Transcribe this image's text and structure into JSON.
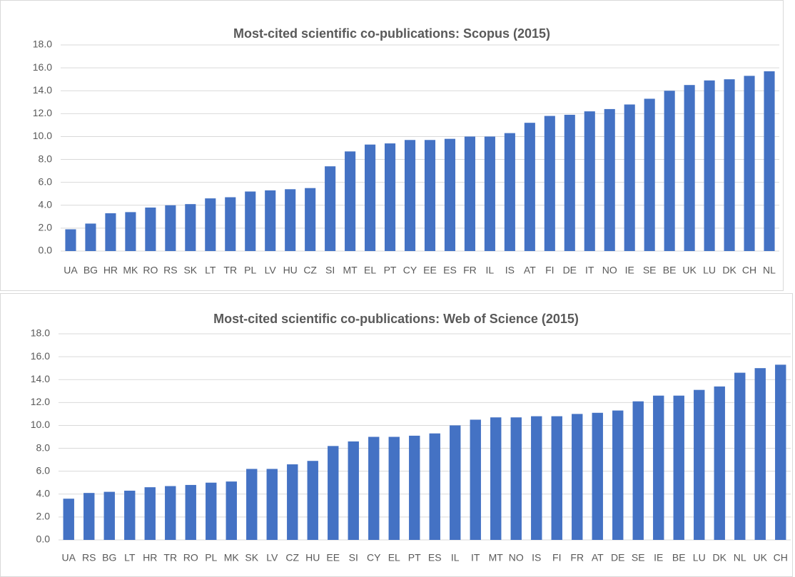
{
  "chart_data": [
    {
      "type": "bar",
      "title": "Most-cited scientific co-publications: Scopus (2015)",
      "categories": [
        "UA",
        "BG",
        "HR",
        "MK",
        "RO",
        "RS",
        "SK",
        "LT",
        "TR",
        "PL",
        "LV",
        "HU",
        "CZ",
        "SI",
        "MT",
        "EL",
        "PT",
        "CY",
        "EE",
        "ES",
        "FR",
        "IL",
        "IS",
        "AT",
        "FI",
        "DE",
        "IT",
        "NO",
        "IE",
        "SE",
        "BE",
        "UK",
        "LU",
        "DK",
        "CH",
        "NL"
      ],
      "values": [
        1.9,
        2.4,
        3.3,
        3.4,
        3.8,
        4.0,
        4.1,
        4.6,
        4.7,
        5.2,
        5.3,
        5.4,
        5.5,
        7.4,
        8.7,
        9.3,
        9.4,
        9.7,
        9.7,
        9.8,
        10.0,
        10.0,
        10.3,
        11.2,
        11.8,
        11.9,
        12.2,
        12.4,
        12.8,
        13.3,
        14.0,
        14.5,
        14.9,
        15.0,
        15.3,
        15.7
      ],
      "color": "#4472c4",
      "ylim": [
        0,
        18
      ],
      "yticks": [
        {
          "value": 0,
          "label": "0.0"
        },
        {
          "value": 2,
          "label": "2.0"
        },
        {
          "value": 4,
          "label": "4.0"
        },
        {
          "value": 6,
          "label": "6.0"
        },
        {
          "value": 8,
          "label": "8.0"
        },
        {
          "value": 10,
          "label": "10.0"
        },
        {
          "value": 12,
          "label": "12.0"
        },
        {
          "value": 14,
          "label": "14.0"
        },
        {
          "value": 16,
          "label": "16.0"
        },
        {
          "value": 18,
          "label": "18.0"
        }
      ],
      "grid": true
    },
    {
      "type": "bar",
      "title": "Most-cited scientific co-publications: Web of Science (2015)",
      "categories": [
        "UA",
        "RS",
        "BG",
        "LT",
        "HR",
        "TR",
        "RO",
        "PL",
        "MK",
        "SK",
        "LV",
        "CZ",
        "HU",
        "EE",
        "SI",
        "CY",
        "EL",
        "PT",
        "ES",
        "IL",
        "IT",
        "MT",
        "NO",
        "IS",
        "FI",
        "FR",
        "AT",
        "DE",
        "SE",
        "IE",
        "BE",
        "LU",
        "DK",
        "NL",
        "UK",
        "CH"
      ],
      "values": [
        3.6,
        4.1,
        4.2,
        4.3,
        4.6,
        4.7,
        4.8,
        5.0,
        5.1,
        6.2,
        6.2,
        6.6,
        6.9,
        8.2,
        8.6,
        9.0,
        9.0,
        9.1,
        9.3,
        10.0,
        10.5,
        10.7,
        10.7,
        10.8,
        10.8,
        11.0,
        11.1,
        11.3,
        12.1,
        12.6,
        12.6,
        13.1,
        13.4,
        14.6,
        15.0,
        15.3
      ],
      "color": "#4472c4",
      "ylim": [
        0,
        18
      ],
      "yticks": [
        {
          "value": 0,
          "label": "0.0"
        },
        {
          "value": 2,
          "label": "2.0"
        },
        {
          "value": 4,
          "label": "4.0"
        },
        {
          "value": 6,
          "label": "6.0"
        },
        {
          "value": 8,
          "label": "8.0"
        },
        {
          "value": 10,
          "label": "10.0"
        },
        {
          "value": 12,
          "label": "12.0"
        },
        {
          "value": 14,
          "label": "14.0"
        },
        {
          "value": 16,
          "label": "16.0"
        },
        {
          "value": 18,
          "label": "18.0"
        }
      ],
      "grid": true
    }
  ]
}
